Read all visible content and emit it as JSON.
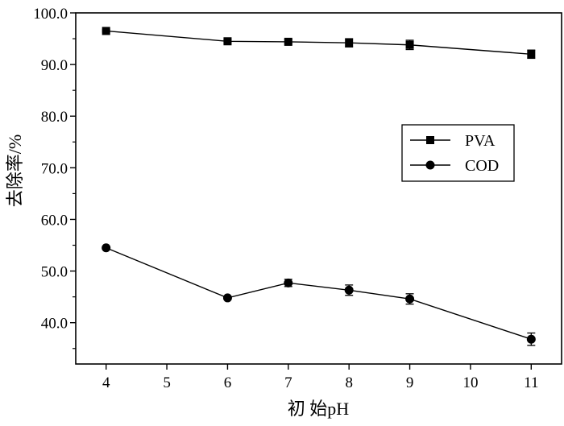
{
  "chart_data": {
    "type": "line",
    "title": "",
    "xlabel": "初 始pH",
    "ylabel": "去除率/%",
    "xlim": [
      3.5,
      11.5
    ],
    "ylim": [
      32.0,
      100.0
    ],
    "x_ticks": [
      4,
      5,
      6,
      7,
      8,
      9,
      10,
      11
    ],
    "x_tick_labels": [
      "4",
      "5",
      "6",
      "7",
      "8",
      "9",
      "10",
      "11"
    ],
    "y_ticks": [
      40,
      50,
      60,
      70,
      80,
      90,
      100
    ],
    "y_tick_labels": [
      "40.0",
      "50.0",
      "60.0",
      "70.0",
      "80.0",
      "90.0",
      "100.0"
    ],
    "grid": false,
    "legend_position": "right-upper",
    "series": [
      {
        "name": "PVA",
        "marker": "square",
        "x": [
          4,
          6,
          7,
          8,
          9,
          11
        ],
        "values": [
          96.5,
          94.5,
          94.4,
          94.2,
          93.8,
          92.0
        ],
        "errors": [
          0.2,
          0.3,
          0.4,
          0.8,
          0.9,
          0.8
        ]
      },
      {
        "name": "COD",
        "marker": "circle",
        "x": [
          4,
          6,
          7,
          8,
          9,
          11
        ],
        "values": [
          54.5,
          44.8,
          47.7,
          46.3,
          44.6,
          36.8
        ],
        "errors": [
          0.2,
          0.3,
          0.7,
          1.0,
          1.0,
          1.2
        ]
      }
    ]
  }
}
